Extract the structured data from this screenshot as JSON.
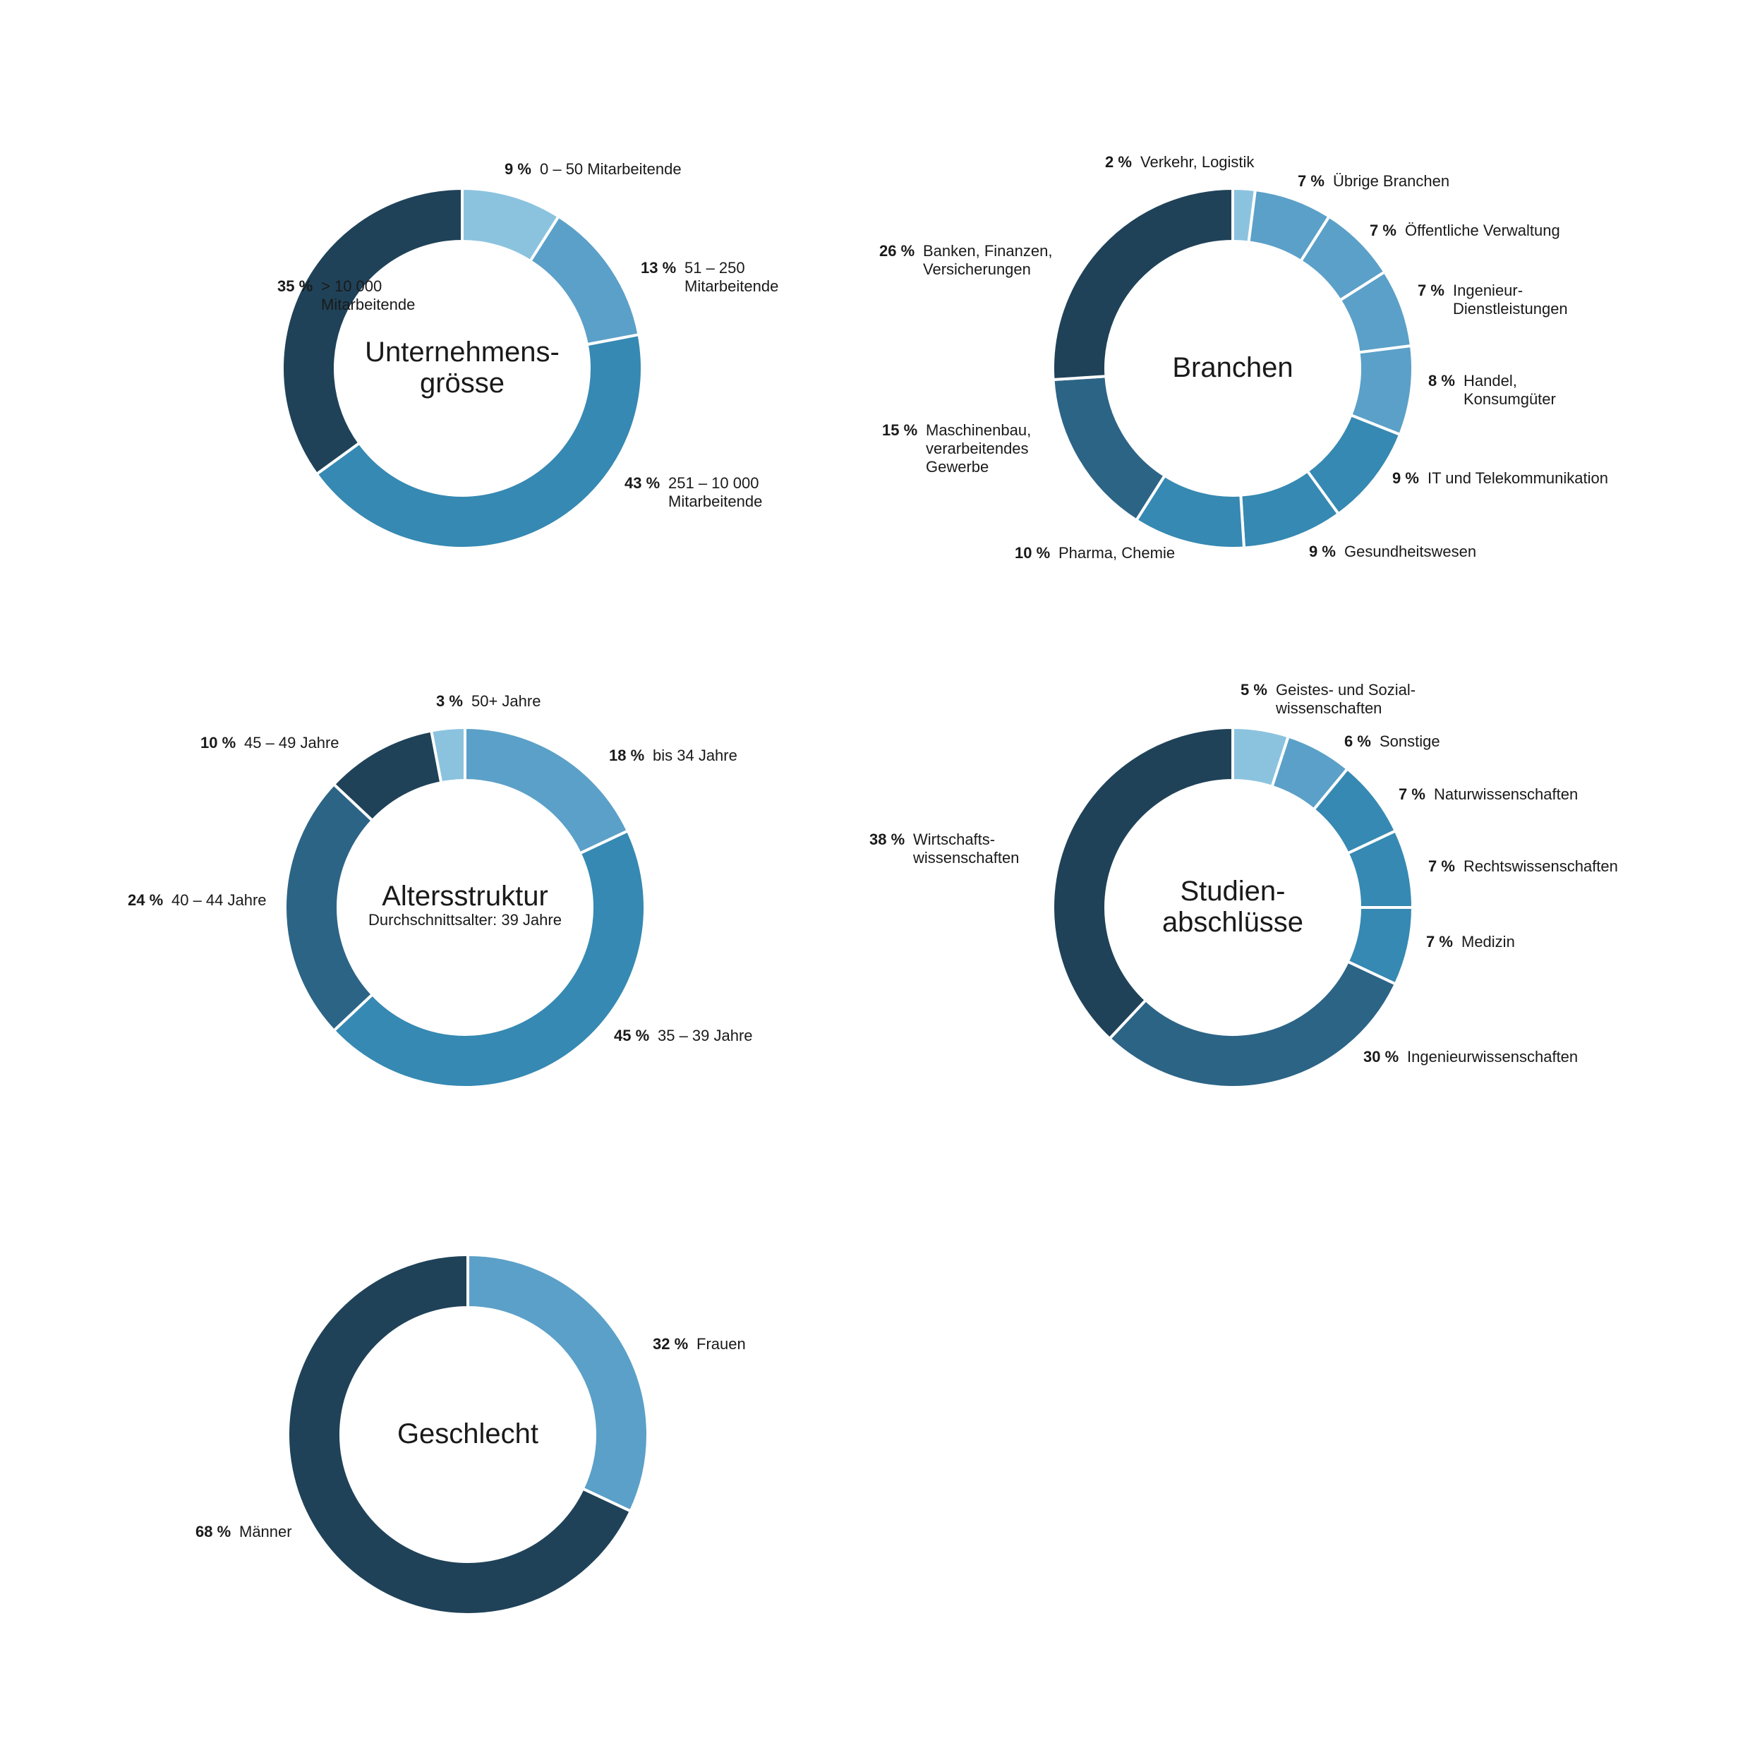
{
  "colors": {
    "c1": "#8bc3df",
    "c2": "#5ba0c8",
    "c3": "#3689b2",
    "c4": "#2c6486",
    "c5": "#1f4258",
    "separator": "#ffffff",
    "text": "#1a1a1a"
  },
  "chart_data": [
    {
      "type": "pie",
      "title": "Unternehmensgrösse",
      "title_lines": [
        "Unternehmens-",
        "grösse"
      ],
      "subtitle": "",
      "slices": [
        {
          "pct": 9,
          "value_label": "9 %",
          "label_lines": [
            "0 – 50 Mitarbeitende"
          ],
          "color": "c1"
        },
        {
          "pct": 13,
          "value_label": "13 %",
          "label_lines": [
            "51 – 250",
            "Mitarbeitende"
          ],
          "color": "c2"
        },
        {
          "pct": 43,
          "value_label": "43 %",
          "label_lines": [
            "251 – 10 000",
            "Mitarbeitende"
          ],
          "color": "c3"
        },
        {
          "pct": 35,
          "value_label": "35 %",
          "label_lines": [
            "> 10 000",
            "Mitarbeitende"
          ],
          "color": "c5"
        }
      ]
    },
    {
      "type": "pie",
      "title": "Branchen",
      "title_lines": [
        "Branchen"
      ],
      "subtitle": "",
      "slices": [
        {
          "pct": 2,
          "value_label": "2 %",
          "label_lines": [
            "Verkehr, Logistik"
          ],
          "color": "c1"
        },
        {
          "pct": 7,
          "value_label": "7 %",
          "label_lines": [
            "Übrige Branchen"
          ],
          "color": "c2"
        },
        {
          "pct": 7,
          "value_label": "7 %",
          "label_lines": [
            "Öffentliche Verwaltung"
          ],
          "color": "c2"
        },
        {
          "pct": 7,
          "value_label": "7 %",
          "label_lines": [
            "Ingenieur-",
            "Dienstleistungen"
          ],
          "color": "c2"
        },
        {
          "pct": 8,
          "value_label": "8 %",
          "label_lines": [
            "Handel,",
            "Konsumgüter"
          ],
          "color": "c2"
        },
        {
          "pct": 9,
          "value_label": "9 %",
          "label_lines": [
            "IT und Telekommunikation"
          ],
          "color": "c3"
        },
        {
          "pct": 9,
          "value_label": "9 %",
          "label_lines": [
            "Gesundheitswesen"
          ],
          "color": "c3"
        },
        {
          "pct": 10,
          "value_label": "10 %",
          "label_lines": [
            "Pharma, Chemie"
          ],
          "color": "c3"
        },
        {
          "pct": 15,
          "value_label": "15 %",
          "label_lines": [
            "Maschinenbau,",
            "verarbeitendes",
            "Gewerbe"
          ],
          "color": "c4"
        },
        {
          "pct": 26,
          "value_label": "26 %",
          "label_lines": [
            "Banken, Finanzen,",
            "Versicherungen"
          ],
          "color": "c5"
        }
      ]
    },
    {
      "type": "pie",
      "title": "Altersstruktur",
      "title_lines": [
        "Altersstruktur"
      ],
      "subtitle": "Durchschnittsalter: 39 Jahre",
      "slices": [
        {
          "pct": 18,
          "value_label": "18 %",
          "label_lines": [
            "bis 34 Jahre"
          ],
          "color": "c2"
        },
        {
          "pct": 45,
          "value_label": "45 %",
          "label_lines": [
            "35 – 39 Jahre"
          ],
          "color": "c3"
        },
        {
          "pct": 24,
          "value_label": "24 %",
          "label_lines": [
            "40 – 44 Jahre"
          ],
          "color": "c4"
        },
        {
          "pct": 10,
          "value_label": "10 %",
          "label_lines": [
            "45 – 49 Jahre"
          ],
          "color": "c5"
        },
        {
          "pct": 3,
          "value_label": "3 %",
          "label_lines": [
            "50+ Jahre"
          ],
          "color": "c1"
        }
      ]
    },
    {
      "type": "pie",
      "title": "Studienabschlüsse",
      "title_lines": [
        "Studien-",
        "abschlüsse"
      ],
      "subtitle": "",
      "slices": [
        {
          "pct": 5,
          "value_label": "5 %",
          "label_lines": [
            "Geistes- und Sozial-",
            "wissenschaften"
          ],
          "color": "c1"
        },
        {
          "pct": 6,
          "value_label": "6 %",
          "label_lines": [
            "Sonstige"
          ],
          "color": "c2"
        },
        {
          "pct": 7,
          "value_label": "7 %",
          "label_lines": [
            "Naturwissenschaften"
          ],
          "color": "c3"
        },
        {
          "pct": 7,
          "value_label": "7 %",
          "label_lines": [
            "Rechtswissenschaften"
          ],
          "color": "c3"
        },
        {
          "pct": 7,
          "value_label": "7 %",
          "label_lines": [
            "Medizin"
          ],
          "color": "c3"
        },
        {
          "pct": 30,
          "value_label": "30 %",
          "label_lines": [
            "Ingenieurwissenschaften"
          ],
          "color": "c4"
        },
        {
          "pct": 38,
          "value_label": "38 %",
          "label_lines": [
            "Wirtschafts-",
            "wissenschaften"
          ],
          "color": "c5"
        }
      ]
    },
    {
      "type": "pie",
      "title": "Geschlecht",
      "title_lines": [
        "Geschlecht"
      ],
      "subtitle": "",
      "slices": [
        {
          "pct": 32,
          "value_label": "32 %",
          "label_lines": [
            "Frauen"
          ],
          "color": "c2"
        },
        {
          "pct": 68,
          "value_label": "68 %",
          "label_lines": [
            "Männer"
          ],
          "color": "c5"
        }
      ]
    }
  ]
}
